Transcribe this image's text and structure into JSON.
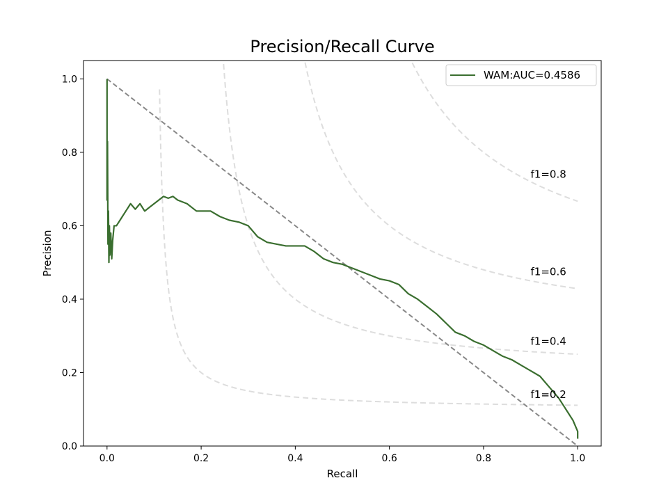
{
  "chart_data": {
    "type": "line",
    "title": "Precision/Recall Curve",
    "xlabel": "Recall",
    "ylabel": "Precision",
    "xlim": [
      -0.05,
      1.05
    ],
    "ylim": [
      0.0,
      1.05
    ],
    "xticks": [
      "0.0",
      "0.2",
      "0.4",
      "0.6",
      "0.8",
      "1.0"
    ],
    "xtick_values": [
      0.0,
      0.2,
      0.4,
      0.6,
      0.8,
      1.0
    ],
    "yticks": [
      "0.0",
      "0.2",
      "0.4",
      "0.6",
      "0.8",
      "1.0"
    ],
    "ytick_values": [
      0.0,
      0.2,
      0.4,
      0.6,
      0.8,
      1.0
    ],
    "grid": false,
    "legend_position": "top-right",
    "series": [
      {
        "name": "WAM:AUC=0.4586",
        "color": "#3a6e2f",
        "x": [
          0.0,
          0.0,
          0.001,
          0.002,
          0.003,
          0.004,
          0.005,
          0.006,
          0.008,
          0.01,
          0.012,
          0.015,
          0.02,
          0.03,
          0.04,
          0.05,
          0.06,
          0.07,
          0.08,
          0.09,
          0.1,
          0.11,
          0.12,
          0.13,
          0.14,
          0.15,
          0.17,
          0.19,
          0.2,
          0.22,
          0.24,
          0.26,
          0.28,
          0.3,
          0.32,
          0.34,
          0.36,
          0.38,
          0.4,
          0.42,
          0.44,
          0.46,
          0.48,
          0.5,
          0.52,
          0.54,
          0.56,
          0.58,
          0.6,
          0.62,
          0.64,
          0.66,
          0.68,
          0.7,
          0.72,
          0.74,
          0.76,
          0.78,
          0.8,
          0.82,
          0.84,
          0.86,
          0.88,
          0.9,
          0.92,
          0.94,
          0.96,
          0.97,
          0.98,
          0.99,
          1.0,
          1.0
        ],
        "y": [
          1.0,
          0.67,
          0.83,
          0.55,
          0.64,
          0.5,
          0.6,
          0.52,
          0.58,
          0.51,
          0.56,
          0.6,
          0.6,
          0.62,
          0.64,
          0.66,
          0.645,
          0.66,
          0.64,
          0.65,
          0.66,
          0.67,
          0.68,
          0.675,
          0.68,
          0.67,
          0.66,
          0.64,
          0.64,
          0.64,
          0.625,
          0.615,
          0.61,
          0.6,
          0.57,
          0.555,
          0.55,
          0.545,
          0.545,
          0.545,
          0.53,
          0.51,
          0.5,
          0.495,
          0.485,
          0.475,
          0.465,
          0.455,
          0.45,
          0.44,
          0.415,
          0.4,
          0.38,
          0.36,
          0.335,
          0.31,
          0.3,
          0.285,
          0.275,
          0.26,
          0.245,
          0.235,
          0.22,
          0.205,
          0.19,
          0.16,
          0.13,
          0.11,
          0.09,
          0.07,
          0.04,
          0.02
        ]
      }
    ],
    "reference_line": {
      "x": [
        0.0,
        1.0
      ],
      "y": [
        1.0,
        0.0
      ],
      "color": "#888888",
      "style": "dashed"
    },
    "iso_f1_curves": [
      {
        "label": "f1=0.2",
        "f": 0.2,
        "label_x": 0.9,
        "label_y": 0.14
      },
      {
        "label": "f1=0.4",
        "f": 0.4,
        "label_x": 0.9,
        "label_y": 0.285
      },
      {
        "label": "f1=0.6",
        "f": 0.6,
        "label_x": 0.9,
        "label_y": 0.475
      },
      {
        "label": "f1=0.8",
        "f": 0.8,
        "label_x": 0.9,
        "label_y": 0.74
      }
    ],
    "iso_color": "#dddddd"
  }
}
